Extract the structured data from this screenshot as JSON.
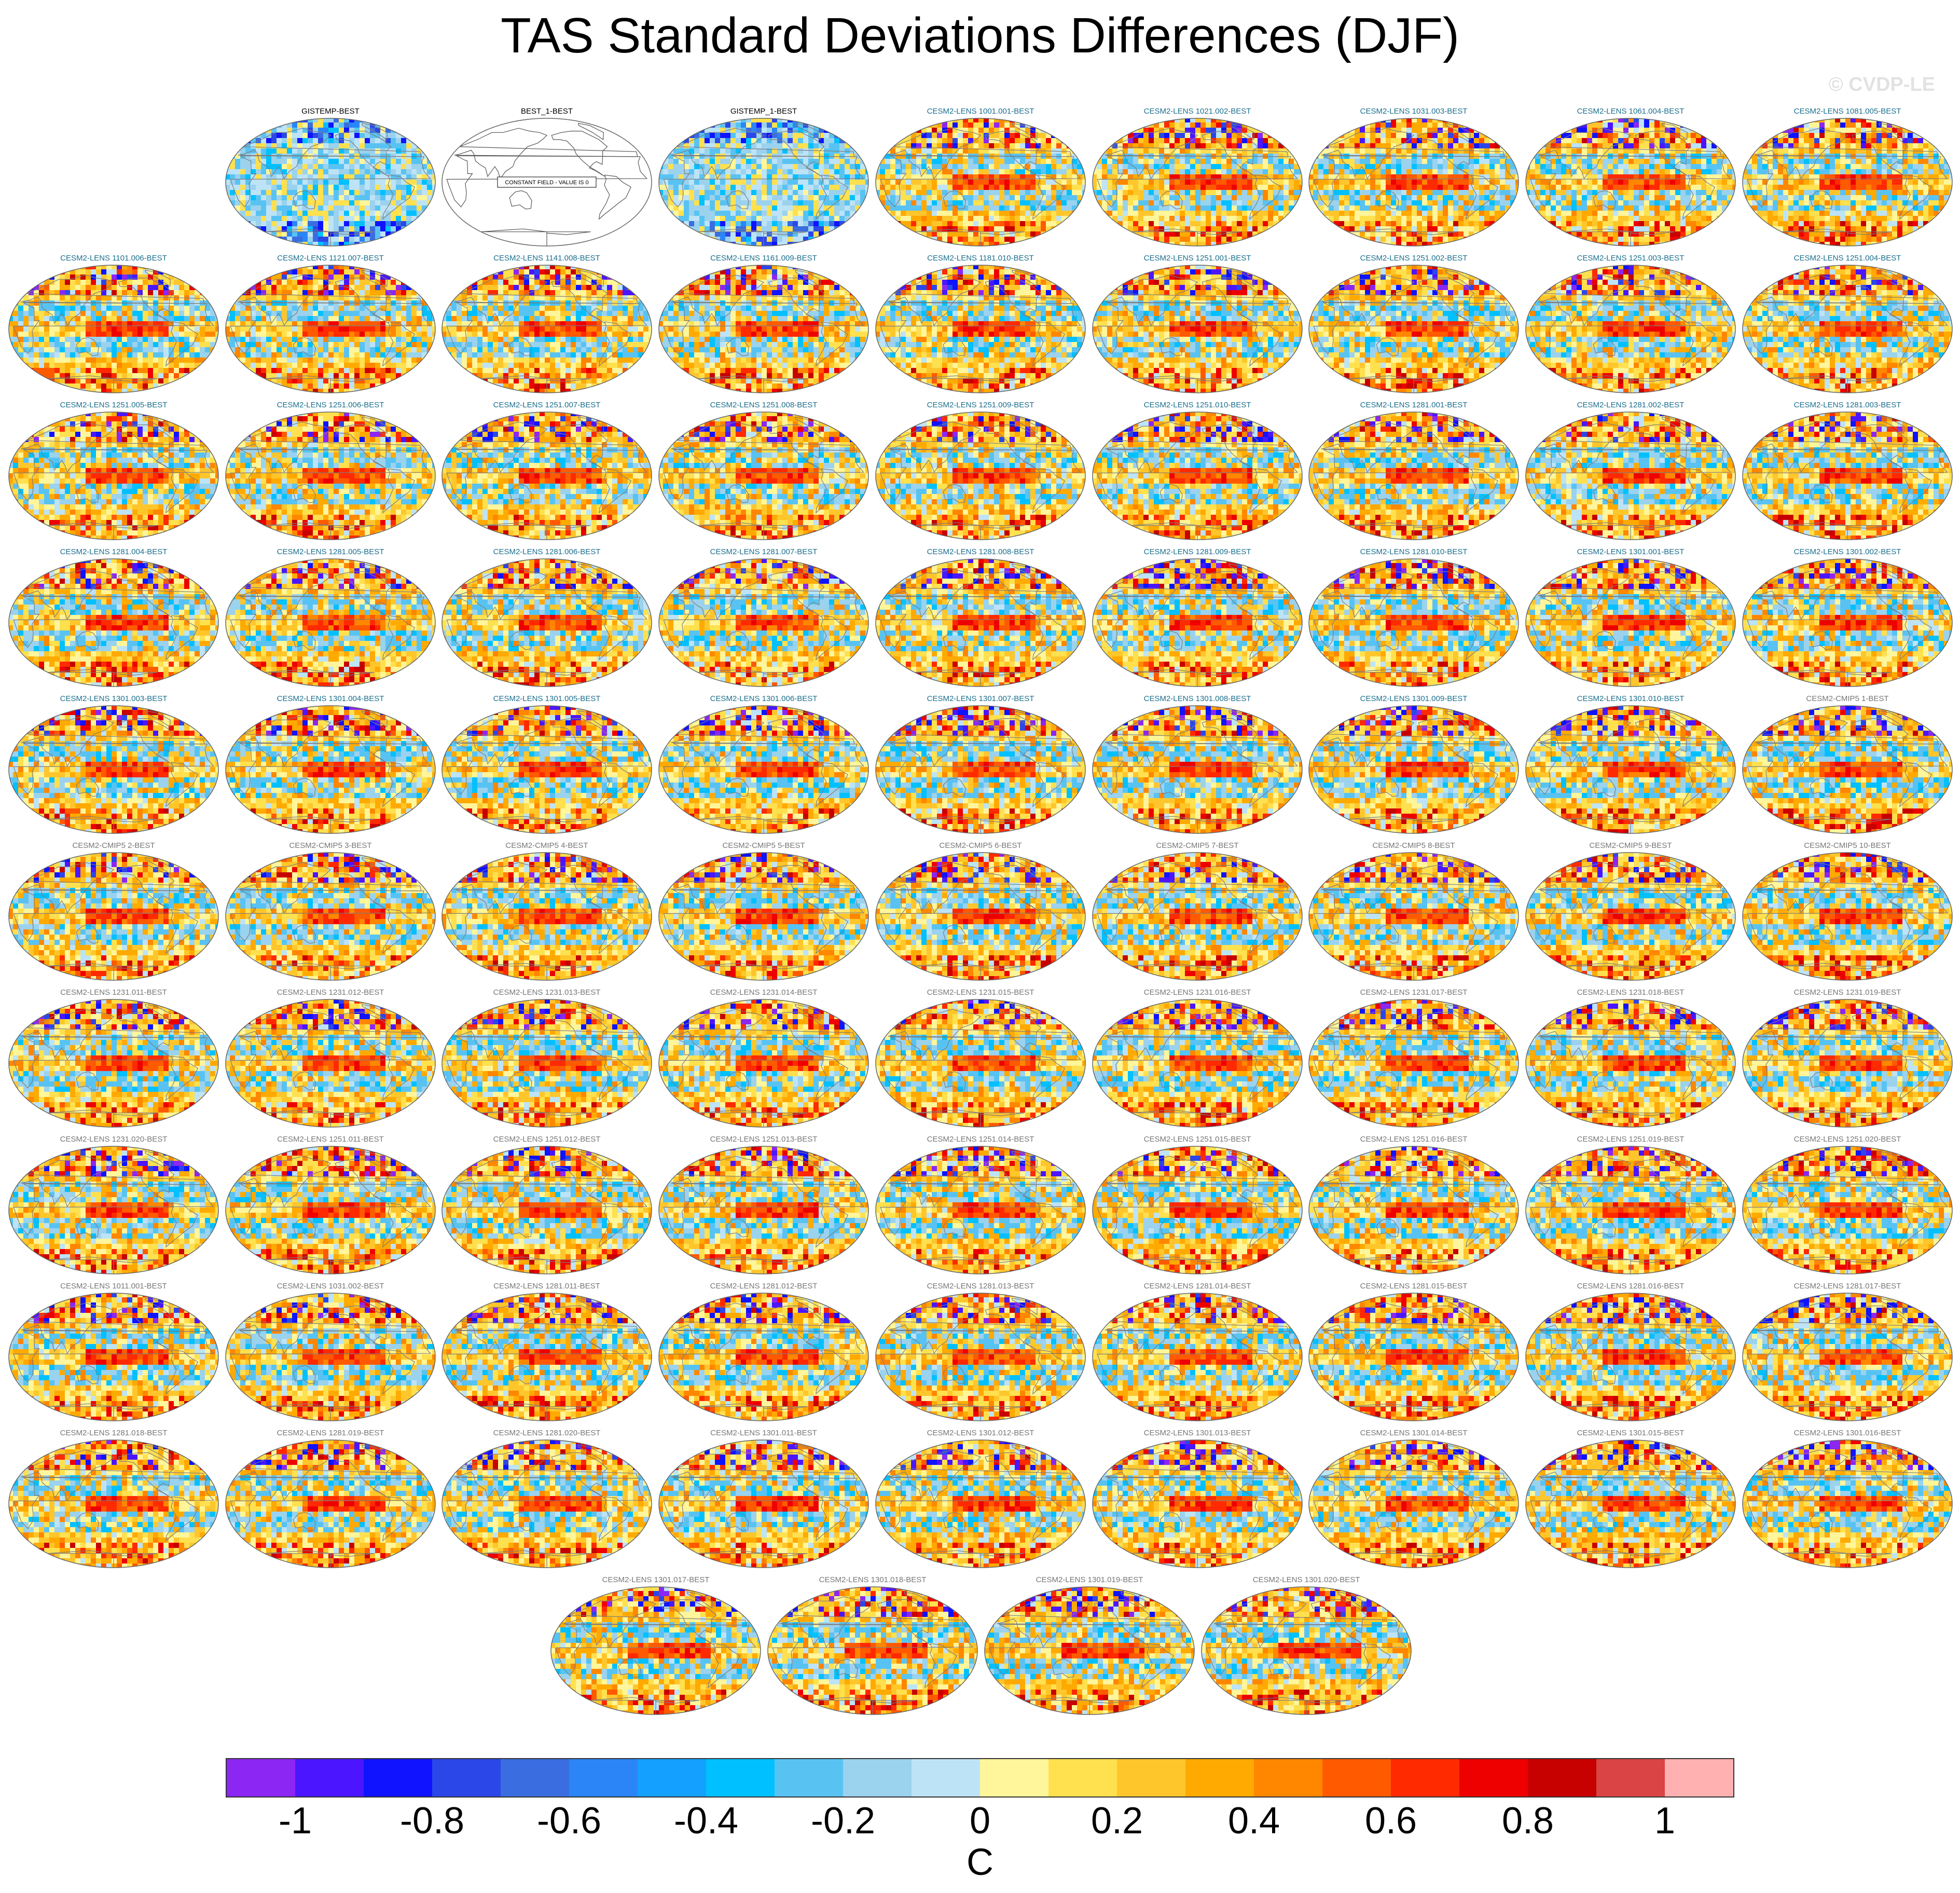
{
  "title": "TAS Standard Deviations Differences (DJF)",
  "watermark": "© CVDP-LE",
  "colorbar": {
    "colors": [
      "#8c26f2",
      "#4b16ff",
      "#0f13ff",
      "#2c47e8",
      "#3a6de0",
      "#2b85f6",
      "#14a0ff",
      "#00c0ff",
      "#58c3f3",
      "#9bd2ed",
      "#bde3f6",
      "#fff59a",
      "#ffe04e",
      "#ffc62c",
      "#ffaa00",
      "#ff8700",
      "#ff5a00",
      "#ff2a00",
      "#ee0000",
      "#c70000",
      "#da4444",
      "#ffb0b0"
    ],
    "tick_labels": [
      "-1",
      "-0.8",
      "-0.6",
      "-0.4",
      "-0.2",
      "0",
      "0.2",
      "0.4",
      "0.6",
      "0.8",
      "1"
    ],
    "unit": "C"
  },
  "chart_data": {
    "type": "heatmap",
    "title": "TAS Standard Deviations Differences (DJF)",
    "variable": "TAS standard deviation difference",
    "season": "DJF",
    "units": "C",
    "range": [
      -1.1,
      1.1
    ],
    "contour_levels": [
      -1,
      -0.9,
      -0.8,
      -0.7,
      -0.6,
      -0.5,
      -0.4,
      -0.3,
      -0.2,
      -0.1,
      0,
      0.1,
      0.2,
      0.3,
      0.4,
      0.5,
      0.6,
      0.7,
      0.8,
      0.9,
      1
    ],
    "panel_rows": [
      [
        "GISTEMP-BEST",
        "BEST_1-BEST",
        "GISTEMP_1-BEST",
        "CESM2-LENS 1001.001-BEST",
        "CESM2-LENS 1021.002-BEST",
        "CESM2-LENS 1031.003-BEST",
        "CESM2-LENS 1061.004-BEST",
        "CESM2-LENS 1081.005-BEST"
      ],
      [
        "CESM2-LENS 1101.006-BEST",
        "CESM2-LENS 1121.007-BEST",
        "CESM2-LENS 1141.008-BEST",
        "CESM2-LENS 1161.009-BEST",
        "CESM2-LENS 1181.010-BEST",
        "CESM2-LENS 1251.001-BEST",
        "CESM2-LENS 1251.002-BEST",
        "CESM2-LENS 1251.003-BEST",
        "CESM2-LENS 1251.004-BEST"
      ],
      [
        "CESM2-LENS 1251.005-BEST",
        "CESM2-LENS 1251.006-BEST",
        "CESM2-LENS 1251.007-BEST",
        "CESM2-LENS 1251.008-BEST",
        "CESM2-LENS 1251.009-BEST",
        "CESM2-LENS 1251.010-BEST",
        "CESM2-LENS 1281.001-BEST",
        "CESM2-LENS 1281.002-BEST",
        "CESM2-LENS 1281.003-BEST"
      ],
      [
        "CESM2-LENS 1281.004-BEST",
        "CESM2-LENS 1281.005-BEST",
        "CESM2-LENS 1281.006-BEST",
        "CESM2-LENS 1281.007-BEST",
        "CESM2-LENS 1281.008-BEST",
        "CESM2-LENS 1281.009-BEST",
        "CESM2-LENS 1281.010-BEST",
        "CESM2-LENS 1301.001-BEST",
        "CESM2-LENS 1301.002-BEST"
      ],
      [
        "CESM2-LENS 1301.003-BEST",
        "CESM2-LENS 1301.004-BEST",
        "CESM2-LENS 1301.005-BEST",
        "CESM2-LENS 1301.006-BEST",
        "CESM2-LENS 1301.007-BEST",
        "CESM2-LENS 1301.008-BEST",
        "CESM2-LENS 1301.009-BEST",
        "CESM2-LENS 1301.010-BEST",
        "CESM2-CMIP5 1-BEST"
      ],
      [
        "CESM2-CMIP5 2-BEST",
        "CESM2-CMIP5 3-BEST",
        "CESM2-CMIP5 4-BEST",
        "CESM2-CMIP5 5-BEST",
        "CESM2-CMIP5 6-BEST",
        "CESM2-CMIP5 7-BEST",
        "CESM2-CMIP5 8-BEST",
        "CESM2-CMIP5 9-BEST",
        "CESM2-CMIP5 10-BEST"
      ],
      [
        "CESM2-LENS 1231.011-BEST",
        "CESM2-LENS 1231.012-BEST",
        "CESM2-LENS 1231.013-BEST",
        "CESM2-LENS 1231.014-BEST",
        "CESM2-LENS 1231.015-BEST",
        "CESM2-LENS 1231.016-BEST",
        "CESM2-LENS 1231.017-BEST",
        "CESM2-LENS 1231.018-BEST",
        "CESM2-LENS 1231.019-BEST"
      ],
      [
        "CESM2-LENS 1231.020-BEST",
        "CESM2-LENS 1251.011-BEST",
        "CESM2-LENS 1251.012-BEST",
        "CESM2-LENS 1251.013-BEST",
        "CESM2-LENS 1251.014-BEST",
        "CESM2-LENS 1251.015-BEST",
        "CESM2-LENS 1251.016-BEST",
        "CESM2-LENS 1251.019-BEST",
        "CESM2-LENS 1251.020-BEST"
      ],
      [
        "CESM2-LENS 1011.001-BEST",
        "CESM2-LENS 1031.002-BEST",
        "CESM2-LENS 1281.011-BEST",
        "CESM2-LENS 1281.012-BEST",
        "CESM2-LENS 1281.013-BEST",
        "CESM2-LENS 1281.014-BEST",
        "CESM2-LENS 1281.015-BEST",
        "CESM2-LENS 1281.016-BEST",
        "CESM2-LENS 1281.017-BEST"
      ],
      [
        "CESM2-LENS 1281.018-BEST",
        "CESM2-LENS 1281.019-BEST",
        "CESM2-LENS 1281.020-BEST",
        "CESM2-LENS 1301.011-BEST",
        "CESM2-LENS 1301.012-BEST",
        "CESM2-LENS 1301.013-BEST",
        "CESM2-LENS 1301.014-BEST",
        "CESM2-LENS 1301.015-BEST",
        "CESM2-LENS 1301.016-BEST"
      ],
      [
        "CESM2-LENS 1301.017-BEST",
        "CESM2-LENS 1301.018-BEST",
        "CESM2-LENS 1301.019-BEST",
        "CESM2-LENS 1301.020-BEST"
      ]
    ],
    "constant_field_panels": [
      {
        "panel": "BEST_1-BEST",
        "label": "CONSTANT FIELD - VALUE IS 0"
      }
    ]
  }
}
